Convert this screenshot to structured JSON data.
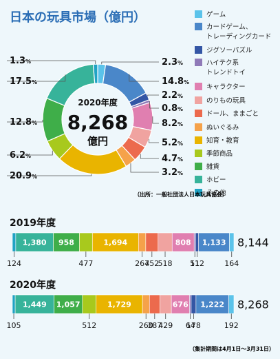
{
  "title": "日本の玩具市場（億円）",
  "source_note": "（出所：一般社団法人日本玩具協会）",
  "period_note": "（集計期間は4月1日～3月31日）",
  "colors": {
    "title": "#2a6db5",
    "text": "#222222",
    "background": "#eef7fb",
    "categories": [
      "#5bc3ea",
      "#4a87c9",
      "#3456a5",
      "#8f7ab8",
      "#e07fb0",
      "#f0a3a0",
      "#ec6a4d",
      "#f5a24a",
      "#e9b400",
      "#a8c91d",
      "#3fae49",
      "#37b39a",
      "#21a3c4"
    ]
  },
  "chart_data": [
    {
      "type": "pie",
      "variant": "donut",
      "title": "日本の玩具市場（億円）",
      "center_labels": [
        "2020年度",
        "8,268",
        "億円"
      ],
      "total": 8268,
      "unit_suffix": "%",
      "categories": [
        "ゲーム",
        "カードゲーム、トレーディングカード",
        "ジグソーパズル",
        "ハイテク系トレンドトイ",
        "キャラクター",
        "のりもの玩具",
        "ドール、ままごと",
        "ぬいぐるみ",
        "知育・教育",
        "季節商品",
        "雑貨",
        "ホビー",
        "その他"
      ],
      "legend_lines": [
        [
          "ゲーム"
        ],
        [
          "カードゲーム、",
          "トレーディングカード"
        ],
        [
          "ジグソーパズル"
        ],
        [
          "ハイテク系",
          "トレンドトイ"
        ],
        [
          "キャラクター"
        ],
        [
          "のりもの玩具"
        ],
        [
          "ドール、ままごと"
        ],
        [
          "ぬいぐるみ"
        ],
        [
          "知育・教育"
        ],
        [
          "季節商品"
        ],
        [
          "雑貨"
        ],
        [
          "ホビー"
        ],
        [
          "その他"
        ]
      ],
      "values": [
        2.3,
        14.8,
        2.2,
        0.8,
        8.2,
        5.2,
        4.7,
        3.2,
        20.9,
        6.2,
        12.8,
        17.5,
        1.3
      ],
      "legend_position": "right"
    },
    {
      "type": "bar",
      "orientation": "horizontal",
      "stacked": true,
      "title": "2019年度",
      "total_label": "8,144",
      "categories": [
        "その他",
        "ホビー",
        "雑貨",
        "季節商品",
        "知育・教育",
        "ぬいぐるみ",
        "ドール、ままごと",
        "のりもの玩具",
        "キャラクター",
        "ハイテク系トレンドトイ",
        "ジグソーパズル",
        "カードゲーム、トレーディングカード",
        "ゲーム"
      ],
      "values": [
        124,
        1380,
        958,
        477,
        1694,
        267,
        452,
        518,
        808,
        51,
        112,
        1133,
        164
      ]
    },
    {
      "type": "bar",
      "orientation": "horizontal",
      "stacked": true,
      "title": "2020年度",
      "total_label": "8,268",
      "categories": [
        "その他",
        "ホビー",
        "雑貨",
        "季節商品",
        "知育・教育",
        "ぬいぐるみ",
        "ドール、ままごと",
        "のりもの玩具",
        "キャラクター",
        "ハイテク系トレンドトイ",
        "ジグソーパズル",
        "カードゲーム、トレーディングカード",
        "ゲーム"
      ],
      "values": [
        105,
        1449,
        1057,
        512,
        1729,
        260,
        387,
        429,
        676,
        64,
        178,
        1222,
        192
      ]
    }
  ]
}
